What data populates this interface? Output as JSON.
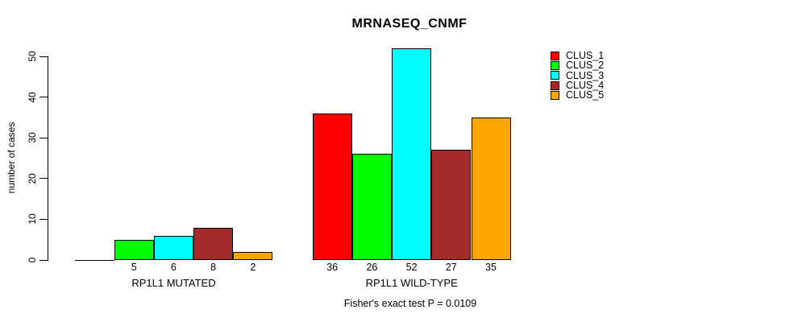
{
  "title": "MRNASEQ_CNMF",
  "annotation": "Fisher's exact test P = 0.0109",
  "y_axis": {
    "label": "number of cases",
    "ticks": [
      0,
      10,
      20,
      30,
      40,
      50
    ]
  },
  "legend": {
    "entries": [
      {
        "label": "CLUS_1",
        "color": "#FF0000"
      },
      {
        "label": "CLUS_2",
        "color": "#00FF00"
      },
      {
        "label": "CLUS_3",
        "color": "#00FFFF"
      },
      {
        "label": "CLUS_4",
        "color": "#A52A2A"
      },
      {
        "label": "CLUS_5",
        "color": "#FFA500"
      }
    ]
  },
  "chart_data": {
    "type": "bar",
    "title": "MRNASEQ_CNMF",
    "xlabel": "",
    "ylabel": "number of cases",
    "ylim": [
      0,
      50
    ],
    "yticks": [
      0,
      10,
      20,
      30,
      40,
      50
    ],
    "grid": false,
    "legend_position": "right",
    "series_names": [
      "CLUS_1",
      "CLUS_2",
      "CLUS_3",
      "CLUS_4",
      "CLUS_5"
    ],
    "colors": [
      "#FF0000",
      "#00FF00",
      "#00FFFF",
      "#A52A2A",
      "#FFA500"
    ],
    "groups": [
      {
        "label": "RP1L1 MUTATED",
        "values": [
          0,
          5,
          6,
          8,
          2
        ]
      },
      {
        "label": "RP1L1 WILD-TYPE",
        "values": [
          36,
          26,
          52,
          27,
          35
        ]
      }
    ],
    "bar_value_labels_shown": [
      "5",
      "6",
      "8",
      "2",
      "36",
      "26",
      "52",
      "27",
      "35"
    ],
    "annotation": "Fisher's exact test P = 0.0109"
  }
}
